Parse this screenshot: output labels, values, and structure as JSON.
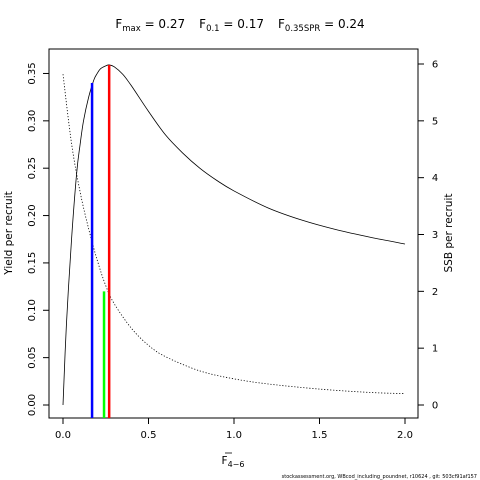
{
  "chart_data": {
    "type": "line",
    "title": {
      "fmax_label": "F",
      "fmax_sub": "max",
      "fmax_value": " = 0.27",
      "f01_label": "F",
      "f01_sub": "0.1",
      "f01_value": " = 0.17",
      "fspr_label": "F",
      "fspr_sub": "0.35SPR",
      "fspr_value": " = 0.24"
    },
    "xlabel": "F",
    "xlabel_sub": "4−6",
    "ylabel_left": "Yield per recruit",
    "ylabel_right": "SSB per recruit",
    "xlim": [
      0,
      2.0
    ],
    "ylim_left": [
      0,
      0.36
    ],
    "ylim_right": [
      0,
      6
    ],
    "x_ticks": [
      "0.0",
      "0.5",
      "1.0",
      "1.5",
      "2.0"
    ],
    "y_left_ticks": [
      "0.00",
      "0.05",
      "0.10",
      "0.15",
      "0.20",
      "0.25",
      "0.30",
      "0.35"
    ],
    "y_right_ticks": [
      "0",
      "1",
      "2",
      "3",
      "4",
      "5",
      "6"
    ],
    "grid": false,
    "series": [
      {
        "line_style": "solid",
        "axis": "left",
        "x": [
          0.0,
          0.02,
          0.05,
          0.08,
          0.1,
          0.12,
          0.15,
          0.18,
          0.2,
          0.22,
          0.25,
          0.27,
          0.3,
          0.35,
          0.4,
          0.5,
          0.6,
          0.7,
          0.8,
          0.9,
          1.0,
          1.2,
          1.4,
          1.6,
          1.8,
          2.0
        ],
        "y": [
          0.0,
          0.085,
          0.175,
          0.245,
          0.275,
          0.3,
          0.325,
          0.343,
          0.35,
          0.355,
          0.358,
          0.359,
          0.357,
          0.349,
          0.337,
          0.31,
          0.285,
          0.266,
          0.25,
          0.237,
          0.226,
          0.208,
          0.195,
          0.185,
          0.177,
          0.17
        ]
      },
      {
        "line_style": "dotted",
        "axis": "right",
        "x": [
          0.0,
          0.05,
          0.1,
          0.15,
          0.2,
          0.25,
          0.3,
          0.4,
          0.5,
          0.6,
          0.8,
          1.0,
          1.2,
          1.5,
          1.8,
          2.0
        ],
        "y": [
          5.82,
          4.6,
          3.75,
          3.1,
          2.55,
          2.1,
          1.78,
          1.35,
          1.05,
          0.85,
          0.6,
          0.46,
          0.37,
          0.28,
          0.22,
          0.2
        ]
      }
    ],
    "reference_lines": [
      {
        "x": 0.17,
        "y_top": 0.34,
        "color": "#0000ff"
      },
      {
        "x": 0.24,
        "y_top": 0.12,
        "color": "#00ff00"
      },
      {
        "x": 0.27,
        "y_top": 0.359,
        "color": "#ff0000"
      }
    ]
  },
  "footnote": "stockassessment.org, WBcod_including_poundnet, r10624 , git: 503cf91af157"
}
